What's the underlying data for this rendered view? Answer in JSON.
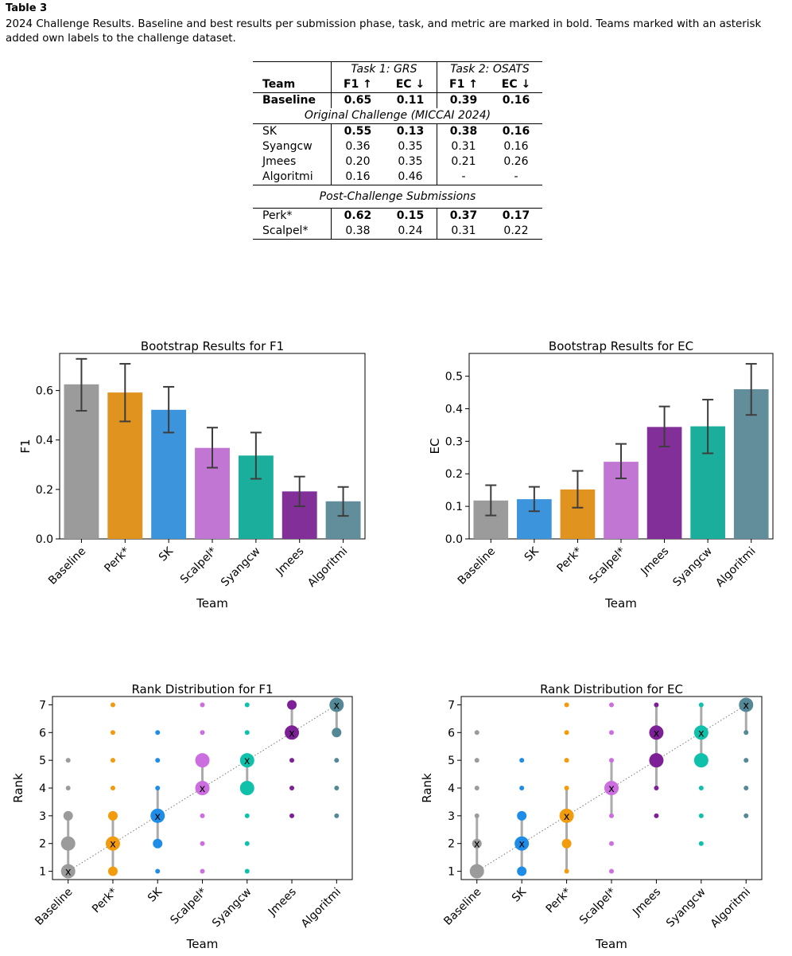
{
  "table": {
    "label": "Table 3",
    "caption": "2024 Challenge Results. Baseline and best results per submission phase, task, and metric are marked in bold. Teams marked with an asterisk added own labels to the challenge dataset.",
    "task1": "Task 1: GRS",
    "task2": "Task 2: OSATS",
    "col_team": "Team",
    "col_f1": "F1 ↑",
    "col_ec": "EC ↓",
    "section_original": "Original Challenge (MICCAI 2024)",
    "section_post": "Post-Challenge Submissions",
    "baseline": {
      "team": "Baseline",
      "grs_f1": "0.65",
      "grs_ec": "0.11",
      "osats_f1": "0.39",
      "osats_ec": "0.16"
    },
    "original_rows": [
      {
        "team": "SK",
        "grs_f1": "0.55",
        "grs_ec": "0.13",
        "osats_f1": "0.38",
        "osats_ec": "0.16",
        "bold": [
          true,
          true,
          true,
          true
        ]
      },
      {
        "team": "Syangcw",
        "grs_f1": "0.36",
        "grs_ec": "0.35",
        "osats_f1": "0.31",
        "osats_ec": "0.16",
        "bold": [
          false,
          false,
          false,
          false
        ]
      },
      {
        "team": "Jmees",
        "grs_f1": "0.20",
        "grs_ec": "0.35",
        "osats_f1": "0.21",
        "osats_ec": "0.26",
        "bold": [
          false,
          false,
          false,
          false
        ]
      },
      {
        "team": "Algoritmi",
        "grs_f1": "0.16",
        "grs_ec": "0.46",
        "osats_f1": "-",
        "osats_ec": "-",
        "bold": [
          false,
          false,
          false,
          false
        ]
      }
    ],
    "post_rows": [
      {
        "team": "Perk*",
        "grs_f1": "0.62",
        "grs_ec": "0.15",
        "osats_f1": "0.37",
        "osats_ec": "0.17",
        "bold": [
          true,
          true,
          true,
          true
        ]
      },
      {
        "team": "Scalpel*",
        "grs_f1": "0.38",
        "grs_ec": "0.24",
        "osats_f1": "0.31",
        "osats_ec": "0.22",
        "bold": [
          false,
          false,
          false,
          false
        ]
      }
    ]
  },
  "chart_data": [
    {
      "type": "bar",
      "title": "Bootstrap Results for F1",
      "xlabel": "Team",
      "ylabel": "F1",
      "ylim": [
        0,
        0.75
      ],
      "yticks": [
        0.0,
        0.2,
        0.4,
        0.6
      ],
      "categories": [
        "Baseline",
        "Perk*",
        "SK",
        "Scalpel*",
        "Syangcw",
        "Jmees",
        "Algoritmi"
      ],
      "values": [
        0.625,
        0.592,
        0.522,
        0.368,
        0.337,
        0.192,
        0.152
      ],
      "error_low": [
        0.518,
        0.475,
        0.43,
        0.288,
        0.243,
        0.132,
        0.093
      ],
      "error_high": [
        0.728,
        0.708,
        0.615,
        0.45,
        0.43,
        0.252,
        0.21
      ],
      "colors": [
        "#9b9b9b",
        "#e0931f",
        "#3b94dc",
        "#c276d3",
        "#1cae9c",
        "#832f9a",
        "#628d9a"
      ]
    },
    {
      "type": "bar",
      "title": "Bootstrap Results for EC",
      "xlabel": "Team",
      "ylabel": "EC",
      "ylim": [
        0,
        0.57
      ],
      "yticks": [
        0.0,
        0.1,
        0.2,
        0.3,
        0.4,
        0.5
      ],
      "categories": [
        "Baseline",
        "SK",
        "Perk*",
        "Scalpel*",
        "Jmees",
        "Syangcw",
        "Algoritmi"
      ],
      "values": [
        0.118,
        0.122,
        0.152,
        0.237,
        0.344,
        0.346,
        0.46
      ],
      "error_low": [
        0.072,
        0.085,
        0.096,
        0.186,
        0.284,
        0.263,
        0.381
      ],
      "error_high": [
        0.165,
        0.16,
        0.209,
        0.292,
        0.407,
        0.428,
        0.538
      ],
      "colors": [
        "#9b9b9b",
        "#3b94dc",
        "#e0931f",
        "#c276d3",
        "#832f9a",
        "#1cae9c",
        "#628d9a"
      ]
    },
    {
      "type": "scatter",
      "title": "Rank Distribution for F1",
      "xlabel": "Team",
      "ylabel": "Rank",
      "ylim": [
        0.7,
        7.3
      ],
      "yticks": [
        1,
        2,
        3,
        4,
        5,
        6,
        7
      ],
      "categories": [
        "Baseline",
        "Perk*",
        "SK",
        "Scalpel*",
        "Syangcw",
        "Jmees",
        "Algoritmi"
      ],
      "colors": [
        "#9b9b9b",
        "#f29b0c",
        "#1e8de8",
        "#cc6de0",
        "#0fc1aa",
        "#7d1f96",
        "#548897"
      ],
      "median_rank": [
        1,
        2,
        3,
        4,
        5,
        6,
        7
      ],
      "range": [
        [
          1,
          3
        ],
        [
          1,
          3
        ],
        [
          2,
          4
        ],
        [
          4,
          5
        ],
        [
          4,
          5
        ],
        [
          6,
          7
        ],
        [
          6,
          7
        ]
      ],
      "rank_frequency": [
        [
          [
            1,
            3
          ],
          [
            2,
            3
          ],
          [
            3,
            2
          ],
          [
            4,
            1
          ],
          [
            5,
            1
          ]
        ],
        [
          [
            1,
            2
          ],
          [
            2,
            3
          ],
          [
            3,
            2
          ],
          [
            4,
            1
          ],
          [
            5,
            1
          ],
          [
            6,
            1
          ],
          [
            7,
            1
          ]
        ],
        [
          [
            1,
            1
          ],
          [
            2,
            2
          ],
          [
            3,
            3
          ],
          [
            4,
            1
          ],
          [
            5,
            1
          ],
          [
            6,
            1
          ]
        ],
        [
          [
            1,
            1
          ],
          [
            2,
            1
          ],
          [
            3,
            1
          ],
          [
            4,
            3
          ],
          [
            5,
            3
          ],
          [
            6,
            1
          ],
          [
            7,
            1
          ]
        ],
        [
          [
            1,
            1
          ],
          [
            2,
            1
          ],
          [
            3,
            1
          ],
          [
            4,
            3
          ],
          [
            5,
            3
          ],
          [
            6,
            1
          ],
          [
            7,
            1
          ]
        ],
        [
          [
            3,
            1
          ],
          [
            4,
            1
          ],
          [
            5,
            1
          ],
          [
            6,
            3
          ],
          [
            7,
            2
          ]
        ],
        [
          [
            3,
            1
          ],
          [
            4,
            1
          ],
          [
            5,
            1
          ],
          [
            6,
            2
          ],
          [
            7,
            3
          ]
        ]
      ]
    },
    {
      "type": "scatter",
      "title": "Rank Distribution for EC",
      "xlabel": "Team",
      "ylabel": "Rank",
      "ylim": [
        0.7,
        7.3
      ],
      "yticks": [
        1,
        2,
        3,
        4,
        5,
        6,
        7
      ],
      "categories": [
        "Baseline",
        "SK",
        "Perk*",
        "Scalpel*",
        "Jmees",
        "Syangcw",
        "Algoritmi"
      ],
      "colors": [
        "#9b9b9b",
        "#1e8de8",
        "#f29b0c",
        "#cc6de0",
        "#7d1f96",
        "#0fc1aa",
        "#548897"
      ],
      "median_rank": [
        2,
        2,
        3,
        4,
        6,
        6,
        7
      ],
      "range": [
        [
          1,
          3
        ],
        [
          1,
          3
        ],
        [
          1,
          4
        ],
        [
          3,
          5
        ],
        [
          4,
          7
        ],
        [
          5,
          7
        ],
        [
          6,
          7
        ]
      ],
      "rank_frequency": [
        [
          [
            1,
            3
          ],
          [
            2,
            2
          ],
          [
            3,
            1
          ],
          [
            4,
            1
          ],
          [
            5,
            1
          ],
          [
            6,
            1
          ]
        ],
        [
          [
            1,
            2
          ],
          [
            2,
            3
          ],
          [
            3,
            2
          ],
          [
            4,
            1
          ],
          [
            5,
            1
          ]
        ],
        [
          [
            1,
            1
          ],
          [
            2,
            2
          ],
          [
            3,
            3
          ],
          [
            4,
            1
          ],
          [
            5,
            1
          ],
          [
            6,
            1
          ],
          [
            7,
            1
          ]
        ],
        [
          [
            1,
            1
          ],
          [
            2,
            1
          ],
          [
            3,
            1
          ],
          [
            4,
            3
          ],
          [
            5,
            1
          ],
          [
            6,
            1
          ],
          [
            7,
            1
          ]
        ],
        [
          [
            3,
            1
          ],
          [
            4,
            1
          ],
          [
            5,
            3
          ],
          [
            6,
            3
          ],
          [
            7,
            1
          ]
        ],
        [
          [
            2,
            1
          ],
          [
            3,
            1
          ],
          [
            4,
            1
          ],
          [
            5,
            3
          ],
          [
            6,
            3
          ],
          [
            7,
            1
          ]
        ],
        [
          [
            3,
            1
          ],
          [
            4,
            1
          ],
          [
            5,
            1
          ],
          [
            6,
            1
          ],
          [
            7,
            3
          ]
        ]
      ]
    }
  ]
}
